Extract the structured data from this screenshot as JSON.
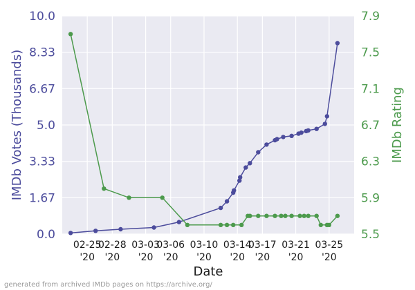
{
  "chart_data": {
    "type": "line",
    "x_label": "Date",
    "x_tick_labels": [
      {
        "date": "2020-02-25",
        "line1": "02-25",
        "line2": "'20"
      },
      {
        "date": "2020-02-28",
        "line1": "02-28",
        "line2": "'20"
      },
      {
        "date": "2020-03-03",
        "line1": "03-03",
        "line2": "'20"
      },
      {
        "date": "2020-03-06",
        "line1": "03-06",
        "line2": "'20"
      },
      {
        "date": "2020-03-10",
        "line1": "03-10",
        "line2": "'20"
      },
      {
        "date": "2020-03-14",
        "line1": "03-14",
        "line2": "'20"
      },
      {
        "date": "2020-03-17",
        "line1": "03-17",
        "line2": "'20"
      },
      {
        "date": "2020-03-21",
        "line1": "03-21",
        "line2": "'20"
      },
      {
        "date": "2020-03-25",
        "line1": "03-25",
        "line2": "'20"
      }
    ],
    "x_range": [
      "2020-02-22",
      "2020-03-28"
    ],
    "left_axis": {
      "label": "IMDb Votes (Thousands)",
      "range": [
        0,
        10
      ],
      "ticks": [
        "0.0",
        "1.67",
        "3.33",
        "5.0",
        "6.67",
        "8.33",
        "10.0"
      ],
      "color": "#4c4c9c"
    },
    "right_axis": {
      "label": "IMDb Rating",
      "range": [
        5.5,
        7.9
      ],
      "ticks": [
        "5.5",
        "5.9",
        "6.3",
        "6.7",
        "7.1",
        "7.5",
        "7.9"
      ],
      "color": "#4c9a4c"
    },
    "grid": true,
    "background": "#eaeaf2",
    "series": [
      {
        "axis": "left",
        "color": "#4c4c9c",
        "points": [
          {
            "x": "2020-02-23",
            "y": 0.05
          },
          {
            "x": "2020-02-26",
            "y": 0.15
          },
          {
            "x": "2020-02-29",
            "y": 0.22
          },
          {
            "x": "2020-03-04",
            "y": 0.3
          },
          {
            "x": "2020-03-07",
            "y": 0.55
          },
          {
            "x": "2020-03-12",
            "y": 1.2
          },
          {
            "x": "2020-03-12 18:00",
            "y": 1.5
          },
          {
            "x": "2020-03-13 12:00",
            "y": 1.9
          },
          {
            "x": "2020-03-13 14:00",
            "y": 2.0
          },
          {
            "x": "2020-03-14 06:00",
            "y": 2.45
          },
          {
            "x": "2020-03-14 08:00",
            "y": 2.6
          },
          {
            "x": "2020-03-15",
            "y": 3.05
          },
          {
            "x": "2020-03-15 12:00",
            "y": 3.25
          },
          {
            "x": "2020-03-16 12:00",
            "y": 3.75
          },
          {
            "x": "2020-03-17 12:00",
            "y": 4.1
          },
          {
            "x": "2020-03-18 12:00",
            "y": 4.3
          },
          {
            "x": "2020-03-18 18:00",
            "y": 4.35
          },
          {
            "x": "2020-03-19 12:00",
            "y": 4.45
          },
          {
            "x": "2020-03-20 12:00",
            "y": 4.5
          },
          {
            "x": "2020-03-21 08:00",
            "y": 4.6
          },
          {
            "x": "2020-03-21 16:00",
            "y": 4.65
          },
          {
            "x": "2020-03-22 06:00",
            "y": 4.72
          },
          {
            "x": "2020-03-22 12:00",
            "y": 4.75
          },
          {
            "x": "2020-03-23 12:00",
            "y": 4.82
          },
          {
            "x": "2020-03-24 12:00",
            "y": 5.05
          },
          {
            "x": "2020-03-24 18:00",
            "y": 5.4
          },
          {
            "x": "2020-03-26",
            "y": 8.75
          }
        ]
      },
      {
        "axis": "right",
        "color": "#4c9a4c",
        "points": [
          {
            "x": "2020-02-23",
            "y": 7.7
          },
          {
            "x": "2020-02-27",
            "y": 6.0
          },
          {
            "x": "2020-03-01",
            "y": 5.9
          },
          {
            "x": "2020-03-05",
            "y": 5.9
          },
          {
            "x": "2020-03-08",
            "y": 5.6
          },
          {
            "x": "2020-03-12",
            "y": 5.6
          },
          {
            "x": "2020-03-12 18:00",
            "y": 5.6
          },
          {
            "x": "2020-03-13 12:00",
            "y": 5.6
          },
          {
            "x": "2020-03-14 12:00",
            "y": 5.6
          },
          {
            "x": "2020-03-15 06:00",
            "y": 5.7
          },
          {
            "x": "2020-03-15 12:00",
            "y": 5.7
          },
          {
            "x": "2020-03-16 12:00",
            "y": 5.7
          },
          {
            "x": "2020-03-17 12:00",
            "y": 5.7
          },
          {
            "x": "2020-03-18 12:00",
            "y": 5.7
          },
          {
            "x": "2020-03-19 06:00",
            "y": 5.7
          },
          {
            "x": "2020-03-19 18:00",
            "y": 5.7
          },
          {
            "x": "2020-03-20 12:00",
            "y": 5.7
          },
          {
            "x": "2020-03-21 12:00",
            "y": 5.7
          },
          {
            "x": "2020-03-22",
            "y": 5.7
          },
          {
            "x": "2020-03-22 12:00",
            "y": 5.7
          },
          {
            "x": "2020-03-23 12:00",
            "y": 5.7
          },
          {
            "x": "2020-03-24",
            "y": 5.6
          },
          {
            "x": "2020-03-24 18:00",
            "y": 5.6
          },
          {
            "x": "2020-03-25",
            "y": 5.6
          },
          {
            "x": "2020-03-26",
            "y": 5.7
          }
        ]
      }
    ]
  },
  "footer_text": "generated from archived IMDb pages on https://archive.org/"
}
